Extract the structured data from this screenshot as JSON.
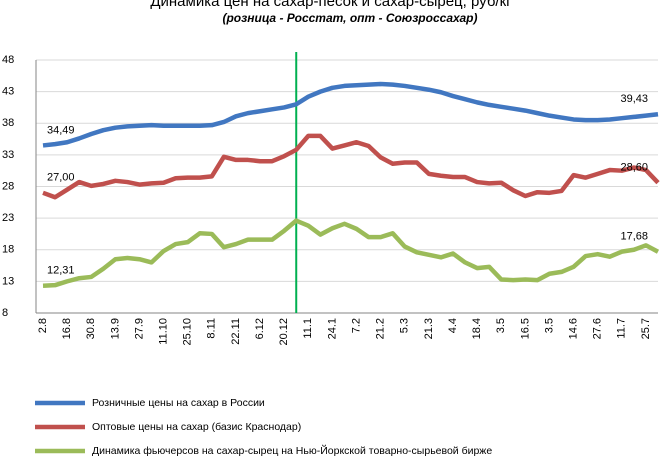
{
  "chart_data": {
    "type": "line",
    "title": "Динамика цен на сахар-песок и сахар-сырец, руб/кг",
    "subtitle": "(розница - Росстат, опт - Союзроссахар)",
    "categories": [
      "2.8",
      null,
      "16.8",
      null,
      "30.8",
      null,
      "13.9",
      null,
      "27.9",
      null,
      "11.10",
      null,
      "25.10",
      null,
      "8.11",
      null,
      "22.11",
      null,
      "6.12",
      null,
      "20.12",
      null,
      "11.1",
      null,
      "24.1",
      null,
      "7.2",
      null,
      "21.2",
      null,
      "5.3",
      null,
      "21.3",
      null,
      "4.4",
      null,
      "18.4",
      null,
      "3.5",
      null,
      "16.5",
      null,
      "3.5",
      null,
      "14.6",
      null,
      "27.6",
      null,
      "11.7",
      null,
      "25.7",
      null
    ],
    "series": [
      {
        "name": "Розничные цены на сахар в России",
        "color": "#4177c1",
        "values": [
          34.49,
          34.7,
          35.0,
          35.6,
          36.3,
          36.9,
          37.3,
          37.5,
          37.6,
          37.7,
          37.6,
          37.6,
          37.6,
          37.6,
          37.7,
          38.2,
          39.1,
          39.6,
          39.9,
          40.2,
          40.5,
          41.0,
          42.2,
          43.0,
          43.6,
          43.9,
          44.0,
          44.1,
          44.2,
          44.1,
          43.9,
          43.6,
          43.3,
          42.9,
          42.3,
          41.8,
          41.3,
          40.9,
          40.6,
          40.3,
          40.0,
          39.6,
          39.2,
          38.9,
          38.6,
          38.5,
          38.5,
          38.6,
          38.8,
          39.0,
          39.2,
          39.43
        ],
        "value_labels": [
          "34,49",
          null,
          null,
          null,
          null,
          null,
          null,
          null,
          null,
          null,
          null,
          null,
          null,
          null,
          null,
          null,
          null,
          null,
          null,
          null,
          null,
          null,
          null,
          null,
          null,
          null,
          null,
          null,
          null,
          null,
          null,
          null,
          null,
          null,
          null,
          null,
          null,
          null,
          null,
          null,
          null,
          null,
          null,
          null,
          null,
          null,
          null,
          null,
          null,
          null,
          null,
          "39,43"
        ]
      },
      {
        "name": "Оптовые цены на сахар (базис Краснодар)",
        "color": "#c0504d",
        "values": [
          27.0,
          26.3,
          27.5,
          28.7,
          28.1,
          28.4,
          28.9,
          28.7,
          28.3,
          28.5,
          28.6,
          29.3,
          29.4,
          29.4,
          29.6,
          32.7,
          32.2,
          32.2,
          32.0,
          32.0,
          32.8,
          33.8,
          36.0,
          36.0,
          34.0,
          34.5,
          35.0,
          34.4,
          32.6,
          31.6,
          31.8,
          31.8,
          30.0,
          29.7,
          29.5,
          29.5,
          28.7,
          28.5,
          28.6,
          27.4,
          26.5,
          27.1,
          27.0,
          27.3,
          29.8,
          29.4,
          30.0,
          30.6,
          30.5,
          31.0,
          30.6,
          28.6
        ],
        "value_labels": [
          "27,00",
          null,
          null,
          null,
          null,
          null,
          null,
          null,
          null,
          null,
          null,
          null,
          null,
          null,
          null,
          null,
          null,
          null,
          null,
          null,
          null,
          null,
          null,
          null,
          null,
          null,
          null,
          null,
          null,
          null,
          null,
          null,
          null,
          null,
          null,
          null,
          null,
          null,
          null,
          null,
          null,
          null,
          null,
          null,
          null,
          null,
          null,
          null,
          null,
          null,
          null,
          "28,60"
        ]
      },
      {
        "name": "Динамика фьючерсов на сахар-сырец на Нью-Йоркской товарно-сырьевой бирже",
        "color": "#9bbb59",
        "values": [
          12.31,
          12.4,
          13.0,
          13.5,
          13.7,
          15.0,
          16.5,
          16.7,
          16.5,
          16.0,
          17.8,
          18.9,
          19.2,
          20.6,
          20.5,
          18.4,
          18.9,
          19.6,
          19.6,
          19.6,
          21.0,
          22.6,
          21.8,
          20.4,
          21.4,
          22.1,
          21.3,
          20.0,
          20.0,
          20.6,
          18.5,
          17.6,
          17.2,
          16.8,
          17.4,
          16.0,
          15.1,
          15.3,
          13.3,
          13.2,
          13.3,
          13.2,
          14.2,
          14.5,
          15.3,
          17.0,
          17.3,
          16.9,
          17.7,
          18.0,
          18.7,
          17.68
        ],
        "value_labels": [
          "12,31",
          null,
          null,
          null,
          null,
          null,
          null,
          null,
          null,
          null,
          null,
          null,
          null,
          null,
          null,
          null,
          null,
          null,
          null,
          null,
          null,
          null,
          null,
          null,
          null,
          null,
          null,
          null,
          null,
          null,
          null,
          null,
          null,
          null,
          null,
          null,
          null,
          null,
          null,
          null,
          null,
          null,
          null,
          null,
          null,
          null,
          null,
          null,
          null,
          null,
          null,
          "17,68"
        ]
      }
    ],
    "ylim": [
      8,
      48
    ],
    "yticks": [
      8,
      13,
      18,
      23,
      28,
      33,
      38,
      43,
      48
    ],
    "grid": true
  }
}
